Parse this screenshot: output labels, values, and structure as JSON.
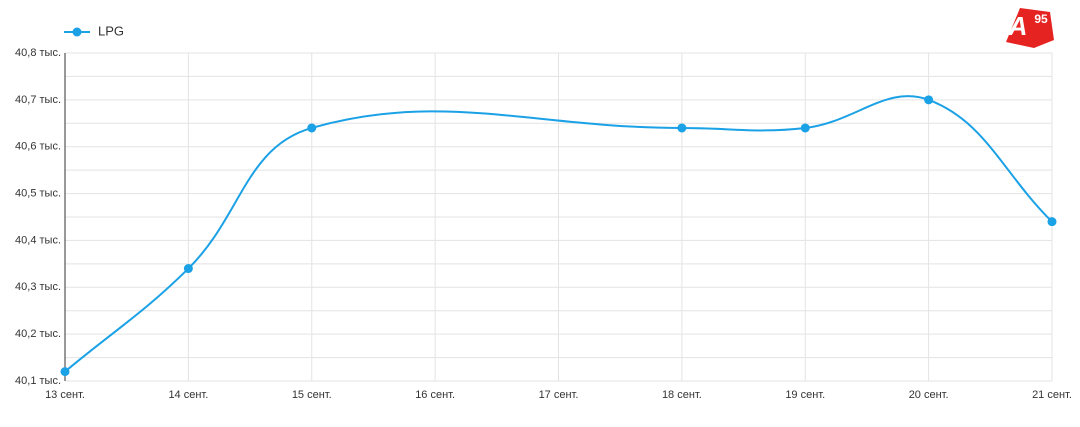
{
  "chart_data": {
    "type": "line",
    "categories": [
      "13 сент.",
      "14 сент.",
      "15 сент.",
      "16 сент.",
      "17 сент.",
      "18 сент.",
      "19 сент.",
      "20 сент.",
      "21 сент."
    ],
    "series": [
      {
        "name": "LPG",
        "color": "#1ba1e6",
        "x": [
          "13 сент.",
          "14 сент.",
          "15 сент.",
          "18 сент.",
          "19 сент.",
          "20 сент.",
          "21 сент."
        ],
        "values": [
          40.12,
          40.34,
          40.64,
          40.64,
          40.64,
          40.7,
          40.44
        ]
      }
    ],
    "ylim": [
      40.1,
      40.8
    ],
    "yticks": [
      {
        "value": 40.1,
        "label": "40,1 тыс."
      },
      {
        "value": 40.2,
        "label": "40,2 тыс."
      },
      {
        "value": 40.3,
        "label": "40,3 тыс."
      },
      {
        "value": 40.4,
        "label": "40,4 тыс."
      },
      {
        "value": 40.5,
        "label": "40,5 тыс."
      },
      {
        "value": 40.6,
        "label": "40,6 тыс."
      },
      {
        "value": 40.7,
        "label": "40,7 тыс."
      },
      {
        "value": 40.8,
        "label": "40,8 тыс."
      }
    ],
    "yminor": [
      40.15,
      40.25,
      40.35,
      40.45,
      40.55,
      40.65,
      40.75
    ],
    "grid": true,
    "smooth": true,
    "legend": "top-left"
  },
  "logo": {
    "letter": "A",
    "number": "95"
  }
}
